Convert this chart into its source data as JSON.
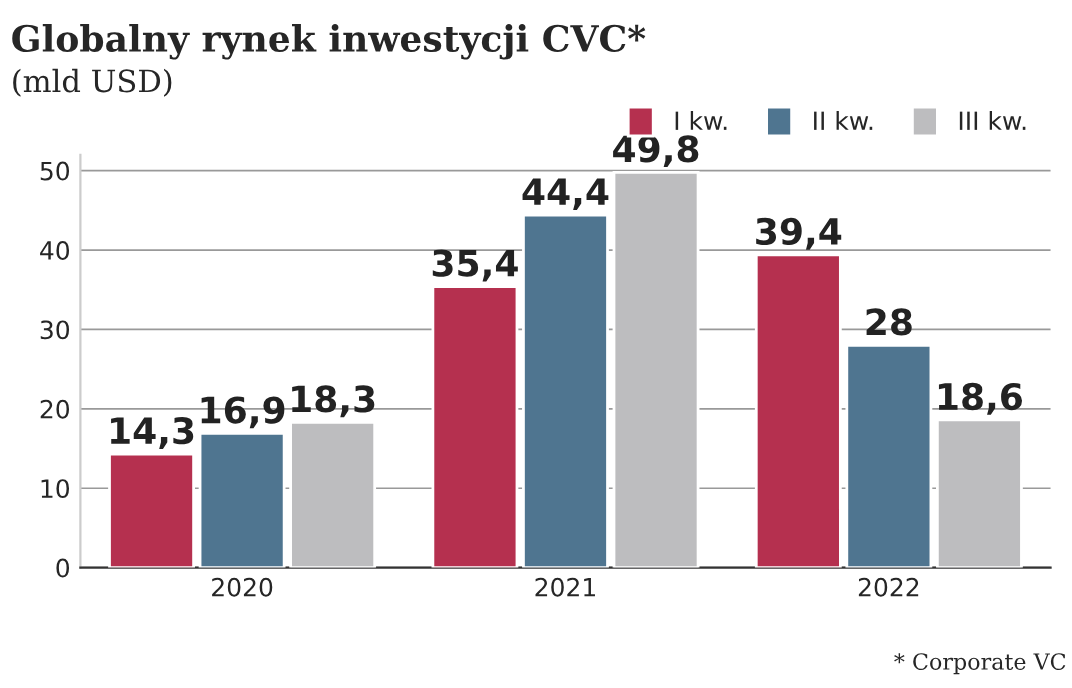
{
  "chart_data": {
    "type": "bar",
    "title": "Globalny rynek inwestycji CVC*",
    "subtitle": "(mld USD)",
    "categories": [
      "2020",
      "2021",
      "2022"
    ],
    "series": [
      {
        "name": "I kw.",
        "color": "#b5304f",
        "values": [
          14.3,
          35.4,
          39.4
        ],
        "value_labels": [
          "14,3",
          "35,4",
          "39,4"
        ]
      },
      {
        "name": "II kw.",
        "color": "#4f7590",
        "values": [
          16.9,
          44.4,
          28
        ],
        "value_labels": [
          "16,9",
          "44,4",
          "28"
        ]
      },
      {
        "name": "III kw.",
        "color": "#bdbdbf",
        "values": [
          18.3,
          49.8,
          18.6
        ],
        "value_labels": [
          "18,3",
          "49,8",
          "18,6"
        ]
      }
    ],
    "ylim": [
      0,
      52
    ],
    "yticks": [
      0,
      10,
      20,
      30,
      40,
      50
    ],
    "grid": "y",
    "legend": "top right",
    "annotations": [
      "* Corporate VC"
    ]
  }
}
